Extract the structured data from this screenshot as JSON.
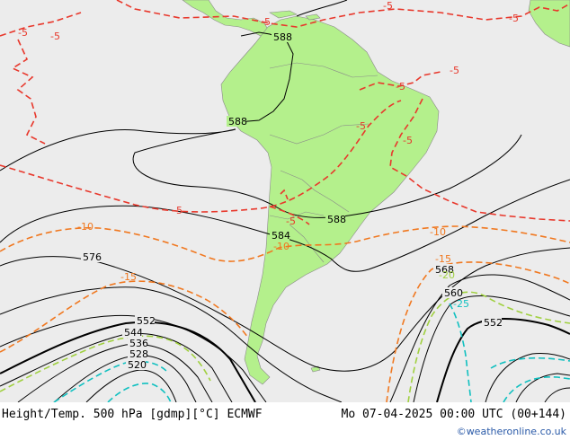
{
  "footer": {
    "title": "Height/Temp. 500 hPa [gdmp][°C] ECMWF",
    "valid_time": "Mo 07-04-2025 00:00 UTC (00+144)",
    "credit": "©weatheronline.co.uk"
  },
  "colors": {
    "ocean": "#ececec",
    "land": "#b4f08c",
    "height_contour": "#000000",
    "temp_minus5": "#e8382c",
    "temp_minus10": "#f07820",
    "temp_minus20": "#a0d040",
    "temp_minus25": "#10c0c0"
  },
  "height_labels": [
    "588",
    "588",
    "588",
    "584",
    "576",
    "568",
    "560",
    "552",
    "552",
    "544",
    "536",
    "528",
    "520"
  ],
  "temp_labels": [
    "-5",
    "-5",
    "-5",
    "-5",
    "-5",
    "-5",
    "-5",
    "-5",
    "-5",
    "-5",
    "-10",
    "-10",
    "-10",
    "-15",
    "-15",
    "-20",
    "-25"
  ]
}
